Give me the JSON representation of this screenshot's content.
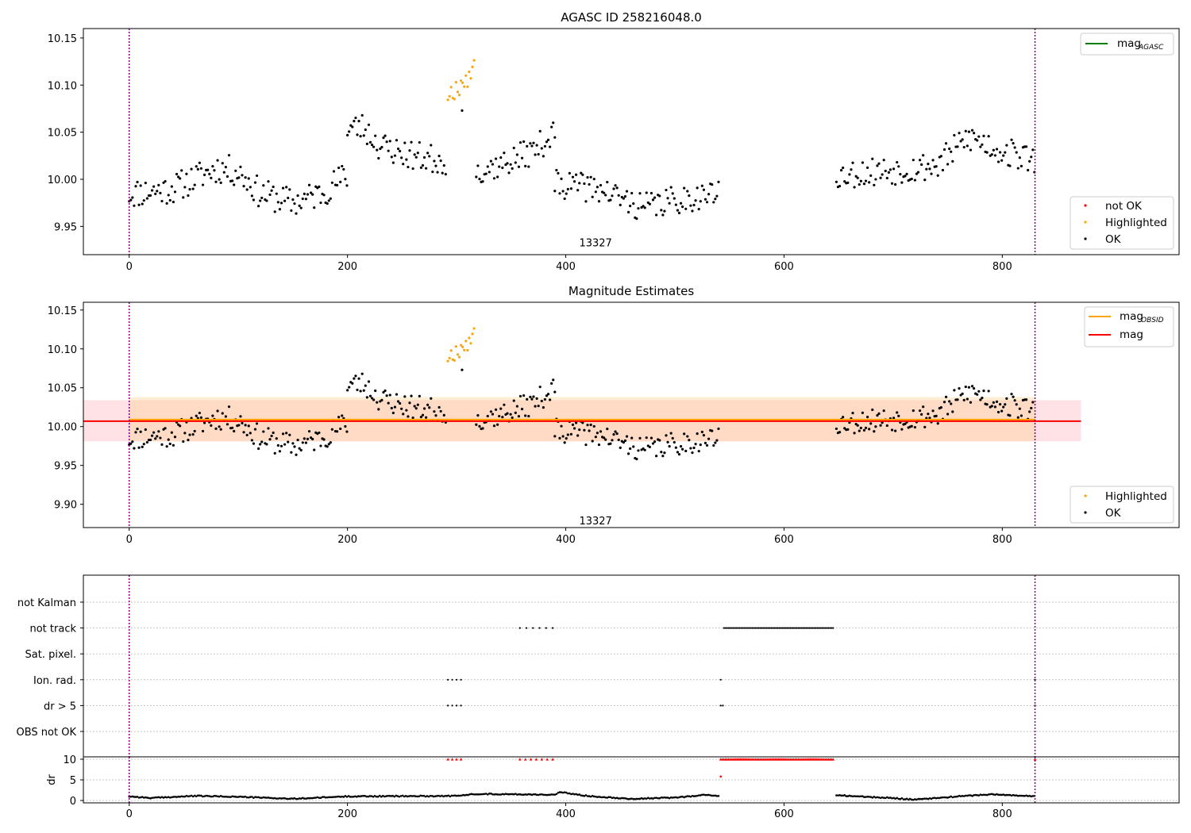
{
  "chart_data": [
    {
      "type": "scatter",
      "title": "AGASC ID 258216048.0",
      "xlim": [
        -42,
        962
      ],
      "ylim": [
        9.92,
        10.16
      ],
      "x_ticks": [
        0,
        200,
        400,
        600,
        800
      ],
      "y_ticks": [
        9.95,
        10.0,
        10.05,
        10.1,
        10.15
      ],
      "y_tick_labels": [
        "9.95",
        "10.00",
        "10.05",
        "10.10",
        "10.15"
      ],
      "vlines": [
        0,
        830
      ],
      "annotation": {
        "x": 415,
        "y": 9.929,
        "text": "13327"
      },
      "legend_top": {
        "position": "top-right",
        "entries": [
          {
            "label": "mag",
            "sub": "AGASC",
            "color": "#008000",
            "kind": "line"
          }
        ]
      },
      "legend_bottom": {
        "position": "bottom-right",
        "entries": [
          {
            "label": "not OK",
            "color": "#ff0000",
            "kind": "marker"
          },
          {
            "label": "Highlighted",
            "color": "#ffa500",
            "kind": "marker"
          },
          {
            "label": "OK",
            "color": "#000000",
            "kind": "marker"
          }
        ]
      },
      "series": [
        {
          "legend": "OK",
          "color": "#000000",
          "segments": [
            {
              "x_start": 0,
              "x_end": 200,
              "seed": 11,
              "knots": [
                [
                  0,
                  9.985
                ],
                [
                  40,
                  9.99
                ],
                [
                  80,
                  10.012
                ],
                [
                  100,
                  10.008
                ],
                [
                  120,
                  9.985
                ],
                [
                  150,
                  9.975
                ],
                [
                  175,
                  9.985
                ],
                [
                  200,
                  10.005
                ]
              ],
              "noise": 0.016
            },
            {
              "x_start": 200,
              "x_end": 290,
              "seed": 23,
              "knots": [
                [
                  200,
                  10.055
                ],
                [
                  215,
                  10.055
                ],
                [
                  230,
                  10.035
                ],
                [
                  260,
                  10.025
                ],
                [
                  290,
                  10.02
                ]
              ],
              "noise": 0.016
            },
            {
              "x_start": 318,
              "x_end": 390,
              "seed": 37,
              "knots": [
                [
                  318,
                  10.01
                ],
                [
                  340,
                  10.015
                ],
                [
                  370,
                  10.03
                ],
                [
                  390,
                  10.05
                ]
              ],
              "noise": 0.015
            },
            {
              "x_start": 390,
              "x_end": 540,
              "seed": 41,
              "knots": [
                [
                  390,
                  9.995
                ],
                [
                  430,
                  9.99
                ],
                [
                  470,
                  9.97
                ],
                [
                  510,
                  9.98
                ],
                [
                  540,
                  9.985
                ]
              ],
              "noise": 0.015
            },
            {
              "x_start": 648,
              "x_end": 830,
              "seed": 53,
              "knots": [
                [
                  648,
                  10.005
                ],
                [
                  700,
                  10.01
                ],
                [
                  740,
                  10.015
                ],
                [
                  770,
                  10.045
                ],
                [
                  800,
                  10.03
                ],
                [
                  830,
                  10.02
                ]
              ],
              "noise": 0.016
            }
          ]
        },
        {
          "legend": "Highlighted",
          "color": "#ffa500",
          "segments": [
            {
              "x_start": 292,
              "x_end": 316,
              "seed": 67,
              "knots": [
                [
                  292,
                  10.09
                ],
                [
                  316,
                  10.115
                ]
              ],
              "noise": 0.012
            }
          ]
        }
      ],
      "highlight_points_extra": [
        [
          305,
          10.073
        ]
      ]
    },
    {
      "type": "scatter",
      "title": "Magnitude Estimates",
      "xlim": [
        -42,
        962
      ],
      "ylim": [
        9.87,
        10.16
      ],
      "x_ticks": [
        0,
        200,
        400,
        600,
        800
      ],
      "y_ticks": [
        9.9,
        9.95,
        10.0,
        10.05,
        10.1,
        10.15
      ],
      "y_tick_labels": [
        "9.90",
        "9.95",
        "10.00",
        "10.05",
        "10.10",
        "10.15"
      ],
      "vlines": [
        0,
        830
      ],
      "annotation": {
        "x": 415,
        "y": 9.874,
        "text": "13327"
      },
      "bands": [
        {
          "x_start": -42,
          "x_end": 872,
          "y_low": 9.981,
          "y_high": 10.034,
          "color": "#ffb6c1",
          "opacity": 0.4
        },
        {
          "x_start": 0,
          "x_end": 830,
          "y_low": 9.981,
          "y_high": 10.038,
          "color": "#ffcc88",
          "opacity": 0.35
        }
      ],
      "lines": [
        {
          "legend": "mag",
          "sub": "OBSID",
          "color": "#ffa500",
          "y": 10.009,
          "x_start": 0,
          "x_end": 830
        },
        {
          "legend": "mag",
          "color": "#ff0000",
          "y": 10.007,
          "x_start": -42,
          "x_end": 872
        }
      ],
      "legend_top": {
        "position": "top-right",
        "entries": [
          {
            "label": "mag",
            "sub": "OBSID",
            "color": "#ffa500",
            "kind": "line"
          },
          {
            "label": "mag",
            "sub": "",
            "color": "#ff0000",
            "kind": "line"
          }
        ]
      },
      "legend_bottom": {
        "position": "bottom-right",
        "entries": [
          {
            "label": "Highlighted",
            "color": "#ffa500",
            "kind": "marker"
          },
          {
            "label": "OK",
            "color": "#000000",
            "kind": "marker"
          }
        ]
      }
    },
    {
      "type": "scatter",
      "title": "",
      "xlim": [
        -42,
        962
      ],
      "x_ticks": [
        0,
        200,
        400,
        600,
        800
      ],
      "vlines": [
        0,
        830
      ],
      "flag_rows": [
        "not Kalman",
        "not track",
        "Sat. pixel.",
        "Ion. rad.",
        "dr > 5",
        "OBS not OK"
      ],
      "flags": [
        {
          "row": "not track",
          "ranges": [
            [
              358,
              388,
              6
            ],
            [
              545,
              645,
              70
            ]
          ]
        },
        {
          "row": "Ion. rad.",
          "ranges": [
            [
              292,
              304,
              4
            ],
            [
              542,
              542,
              1
            ],
            [
              830,
              830,
              1
            ]
          ]
        },
        {
          "row": "dr > 5",
          "ranges": [
            [
              292,
              304,
              4
            ],
            [
              542,
              544,
              2
            ],
            [
              830,
              830,
              1
            ]
          ]
        }
      ],
      "dr_panel": {
        "ylabel": "dr",
        "ylim": [
          0,
          10
        ],
        "y_ticks": [
          0,
          5,
          10
        ],
        "capped_markers": [
          [
            292,
            304,
            4
          ],
          [
            358,
            388,
            7
          ],
          [
            542,
            645,
            75
          ],
          [
            830,
            830,
            1
          ]
        ],
        "extra_red": [
          [
            542,
            5.8
          ]
        ],
        "trace_knots": [
          [
            0,
            1.0
          ],
          [
            10,
            0.8
          ],
          [
            20,
            0.6
          ],
          [
            60,
            1.1
          ],
          [
            100,
            0.9
          ],
          [
            150,
            0.4
          ],
          [
            200,
            1.0
          ],
          [
            300,
            1.1
          ],
          [
            318,
            1.6
          ],
          [
            390,
            1.4
          ],
          [
            395,
            2.0
          ],
          [
            420,
            1.1
          ],
          [
            460,
            0.4
          ],
          [
            500,
            0.7
          ],
          [
            530,
            1.4
          ],
          [
            540,
            1.0
          ]
        ],
        "trace_knots_2": [
          [
            648,
            1.3
          ],
          [
            680,
            0.8
          ],
          [
            700,
            0.6
          ],
          [
            720,
            0.2
          ],
          [
            760,
            1.0
          ],
          [
            790,
            1.5
          ],
          [
            830,
            1.0
          ]
        ]
      }
    }
  ]
}
